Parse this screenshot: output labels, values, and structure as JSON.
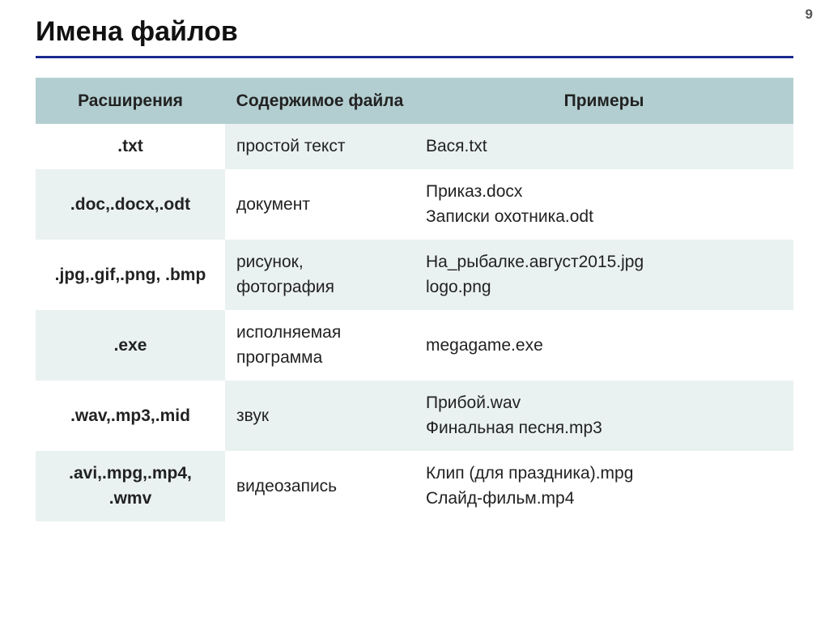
{
  "page_number": "9",
  "title": "Имена файлов",
  "colors": {
    "rule": "#1a2a8f",
    "header_bg": "#b3ced0",
    "row_tint": "#eaf1f1",
    "row_plain": "#ffffff",
    "text": "#222222"
  },
  "typography": {
    "title_fontsize_pt": 26,
    "table_fontsize_pt": 16,
    "font_family": "Arial"
  },
  "table": {
    "type": "table",
    "column_widths_pct": [
      25,
      25,
      50
    ],
    "columns": [
      "Расширения",
      "Содержимое файла",
      "Примеры"
    ],
    "rows": [
      {
        "ext": ".txt",
        "content": "простой текст",
        "examples": "Вася.txt"
      },
      {
        "ext": ".doc,.docx,.odt",
        "content": "документ",
        "examples": "Приказ.docx\nЗаписки охотника.odt"
      },
      {
        "ext": ".jpg,.gif,.png, .bmp",
        "content": "рисунок, фотография",
        "examples": "На_рыбалке.август2015.jpg\nlogo.png"
      },
      {
        "ext": ".exe",
        "content": "исполняемая программа",
        "examples": "megagame.exe"
      },
      {
        "ext": ".wav,.mp3,.mid",
        "content": "звук",
        "examples": "Прибой.wav\nФинальная песня.mp3"
      },
      {
        "ext": ".avi,.mpg,.mp4, .wmv",
        "content": "видеозапись",
        "examples": "Клип (для праздника).mpg\nСлайд-фильм.mp4"
      }
    ]
  }
}
